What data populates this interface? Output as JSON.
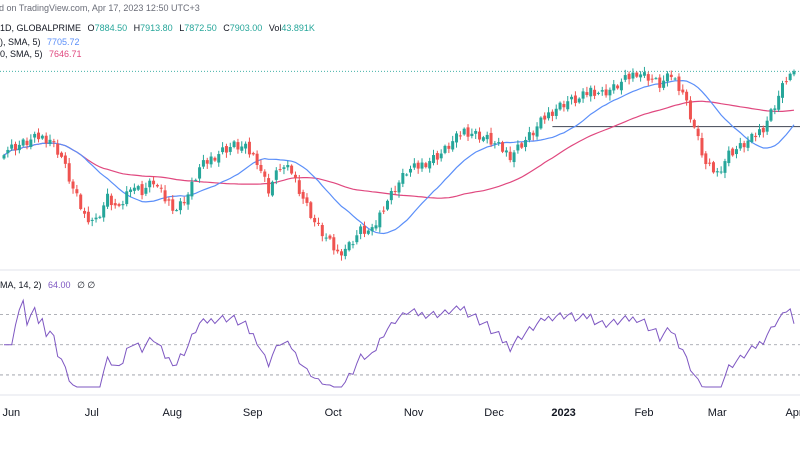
{
  "header": {
    "published_line": "d on TradingView.com, Apr 17, 2023 12:50 UTC+3",
    "symbol_line": "1D, GLOBALPRIME",
    "ohlc": {
      "open_label": "O",
      "open": "7884.50",
      "high_label": "H",
      "high": "7913.80",
      "low_label": "L",
      "low": "7872.50",
      "close_label": "C",
      "close": "7903.00",
      "vol_label": "Vol",
      "vol": "43.891K"
    },
    "ma_lines": [
      {
        "label": "), SMA, 5)",
        "value": "7705.72",
        "color": "#5b8ff9"
      },
      {
        "label": "0, SMA, 5)",
        "value": "7646.71",
        "color": "#e0487f"
      }
    ],
    "rsi_label": "MA, 14, 2)",
    "rsi_value": "64.00",
    "rsi_extra": "∅ ∅"
  },
  "colors": {
    "up": "#26a69a",
    "down": "#ef5350",
    "ma_fast": "#5b8ff9",
    "ma_slow": "#e0487f",
    "rsi": "#7e57c2",
    "hline": "#9598a1",
    "last_price_line": "#26a69a"
  },
  "chart_data": {
    "type": "candlestick",
    "x_axis_labels": [
      "Jun",
      "Jul",
      "Aug",
      "Sep",
      "Oct",
      "Nov",
      "Dec",
      "2023",
      "Feb",
      "Mar",
      "Apr"
    ],
    "x_axis_bold": [
      "2023"
    ],
    "horizontal_level": 7565,
    "price_range": [
      6700,
      7960
    ],
    "candles": [],
    "ma_fast": [],
    "ma_slow": [],
    "rsi_levels": [
      70,
      50,
      30
    ],
    "rsi_range": [
      20,
      85
    ],
    "rsi": []
  }
}
